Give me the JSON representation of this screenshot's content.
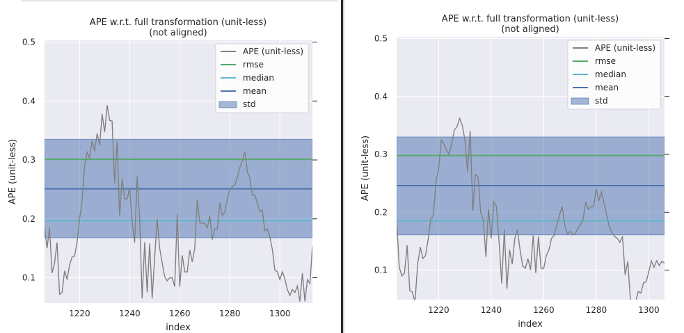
{
  "chart_data": [
    {
      "type": "line",
      "title": "APE w.r.t. full transformation (unit-less)",
      "subtitle": "(not aligned)",
      "xlabel": "index",
      "ylabel": "APE (unit-less)",
      "xlim": [
        1206,
        1313
      ],
      "ylim": [
        0.057,
        0.503
      ],
      "xticks": [
        1220,
        1240,
        1260,
        1280,
        1300
      ],
      "yticks": [
        0.1,
        0.2,
        0.3,
        0.4,
        0.5
      ],
      "xtick_labels": [
        "1220",
        "1240",
        "1260",
        "1280",
        "1300"
      ],
      "ytick_labels": [
        "0.1",
        "0.2",
        "0.3",
        "0.4",
        "0.5"
      ],
      "grid": true,
      "legend": {
        "placement": "top-right",
        "entries": [
          {
            "label": "APE (unit-less)",
            "kind": "line",
            "color": "#808080"
          },
          {
            "label": "rmse",
            "kind": "line",
            "color": "#55a868"
          },
          {
            "label": "median",
            "kind": "line",
            "color": "#64b5cd"
          },
          {
            "label": "mean",
            "kind": "line",
            "color": "#4c72b0"
          },
          {
            "label": "std",
            "kind": "band",
            "color": "#4c72b0"
          }
        ]
      },
      "stats": {
        "rmse": 0.301,
        "median": 0.197,
        "mean": 0.251,
        "std_low": 0.168,
        "std_high": 0.335
      },
      "series": [
        {
          "name": "APE (unit-less)",
          "color": "#808080",
          "x": [
            1206,
            1207,
            1208,
            1209,
            1210,
            1211,
            1212,
            1213,
            1214,
            1215,
            1216,
            1217,
            1218,
            1219,
            1220,
            1221,
            1222,
            1223,
            1224,
            1225,
            1226,
            1227,
            1228,
            1229,
            1230,
            1231,
            1232,
            1233,
            1234,
            1235,
            1236,
            1237,
            1238,
            1239,
            1240,
            1241,
            1242,
            1243,
            1244,
            1245,
            1246,
            1247,
            1248,
            1249,
            1250,
            1251,
            1252,
            1253,
            1254,
            1255,
            1256,
            1257,
            1258,
            1259,
            1260,
            1261,
            1262,
            1263,
            1264,
            1265,
            1266,
            1267,
            1268,
            1269,
            1270,
            1271,
            1272,
            1273,
            1274,
            1275,
            1276,
            1277,
            1278,
            1279,
            1280,
            1281,
            1282,
            1283,
            1284,
            1285,
            1286,
            1287,
            1288,
            1289,
            1290,
            1291,
            1292,
            1293,
            1294,
            1295,
            1296,
            1297,
            1298,
            1299,
            1300,
            1301,
            1302,
            1303,
            1304,
            1305,
            1306,
            1307,
            1308,
            1309,
            1310,
            1311,
            1312,
            1313
          ],
          "y": [
            0.186,
            0.15,
            0.185,
            0.108,
            0.125,
            0.16,
            0.072,
            0.075,
            0.112,
            0.097,
            0.122,
            0.135,
            0.137,
            0.16,
            0.2,
            0.23,
            0.29,
            0.313,
            0.303,
            0.332,
            0.315,
            0.345,
            0.325,
            0.378,
            0.347,
            0.393,
            0.367,
            0.366,
            0.26,
            0.332,
            0.205,
            0.268,
            0.234,
            0.234,
            0.251,
            0.195,
            0.16,
            0.272,
            0.2,
            0.065,
            0.16,
            0.075,
            0.158,
            0.065,
            0.135,
            0.2,
            0.15,
            0.125,
            0.102,
            0.095,
            0.1,
            0.1,
            0.085,
            0.208,
            0.085,
            0.138,
            0.11,
            0.11,
            0.147,
            0.127,
            0.15,
            0.233,
            0.193,
            0.193,
            0.192,
            0.185,
            0.205,
            0.165,
            0.183,
            0.183,
            0.227,
            0.205,
            0.212,
            0.234,
            0.249,
            0.255,
            0.258,
            0.27,
            0.287,
            0.298,
            0.314,
            0.28,
            0.27,
            0.24,
            0.241,
            0.227,
            0.212,
            0.215,
            0.18,
            0.183,
            0.17,
            0.148,
            0.113,
            0.11,
            0.097,
            0.11,
            0.098,
            0.08,
            0.07,
            0.08,
            0.075,
            0.086,
            0.06,
            0.108,
            0.06,
            0.097,
            0.09,
            0.153
          ]
        }
      ]
    },
    {
      "type": "line",
      "title": "APE w.r.t. full transformation (unit-less)",
      "subtitle": "(not aligned)",
      "xlabel": "index",
      "ylabel": "APE (unit-less)",
      "xlim": [
        1204,
        1306
      ],
      "ylim": [
        0.049,
        0.503
      ],
      "xticks": [
        1220,
        1240,
        1260,
        1280,
        1300
      ],
      "yticks": [
        0.1,
        0.2,
        0.3,
        0.4,
        0.5
      ],
      "xtick_labels": [
        "1220",
        "1240",
        "1260",
        "1280",
        "1300"
      ],
      "ytick_labels": [
        "0.1",
        "0.2",
        "0.3",
        "0.4",
        "0.5"
      ],
      "grid": true,
      "legend": {
        "placement": "top-right",
        "entries": [
          {
            "label": "APE (unit-less)",
            "kind": "line",
            "color": "#808080"
          },
          {
            "label": "rmse",
            "kind": "line",
            "color": "#55a868"
          },
          {
            "label": "median",
            "kind": "line",
            "color": "#64b5cd"
          },
          {
            "label": "mean",
            "kind": "line",
            "color": "#4c72b0"
          },
          {
            "label": "std",
            "kind": "band",
            "color": "#4c72b0"
          }
        ]
      },
      "stats": {
        "rmse": 0.298,
        "median": 0.185,
        "mean": 0.246,
        "std_low": 0.161,
        "std_high": 0.33
      },
      "series": [
        {
          "name": "APE (unit-less)",
          "color": "#808080",
          "x": [
            1204,
            1205,
            1206,
            1207,
            1208,
            1209,
            1210,
            1211,
            1212,
            1213,
            1214,
            1215,
            1216,
            1217,
            1218,
            1219,
            1220,
            1221,
            1222,
            1223,
            1224,
            1225,
            1226,
            1227,
            1228,
            1229,
            1230,
            1231,
            1232,
            1233,
            1234,
            1235,
            1236,
            1237,
            1238,
            1239,
            1240,
            1241,
            1242,
            1243,
            1244,
            1245,
            1246,
            1247,
            1248,
            1249,
            1250,
            1251,
            1252,
            1253,
            1254,
            1255,
            1256,
            1257,
            1258,
            1259,
            1260,
            1261,
            1262,
            1263,
            1264,
            1265,
            1266,
            1267,
            1268,
            1269,
            1270,
            1271,
            1272,
            1273,
            1274,
            1275,
            1276,
            1277,
            1278,
            1279,
            1280,
            1281,
            1282,
            1283,
            1284,
            1285,
            1286,
            1287,
            1288,
            1289,
            1290,
            1291,
            1292,
            1293,
            1294,
            1295,
            1296,
            1297,
            1298,
            1299,
            1300,
            1301,
            1302,
            1303,
            1304,
            1305,
            1306
          ],
          "y": [
            0.188,
            0.105,
            0.09,
            0.095,
            0.143,
            0.065,
            0.062,
            0.045,
            0.11,
            0.14,
            0.12,
            0.125,
            0.153,
            0.188,
            0.195,
            0.253,
            0.275,
            0.325,
            0.318,
            0.307,
            0.3,
            0.32,
            0.342,
            0.348,
            0.362,
            0.35,
            0.325,
            0.27,
            0.34,
            0.202,
            0.265,
            0.262,
            0.2,
            0.187,
            0.123,
            0.205,
            0.155,
            0.218,
            0.21,
            0.15,
            0.077,
            0.17,
            0.068,
            0.135,
            0.11,
            0.155,
            0.17,
            0.135,
            0.107,
            0.103,
            0.12,
            0.1,
            0.16,
            0.095,
            0.158,
            0.103,
            0.103,
            0.125,
            0.135,
            0.155,
            0.16,
            0.177,
            0.195,
            0.21,
            0.178,
            0.162,
            0.167,
            0.162,
            0.163,
            0.172,
            0.178,
            0.188,
            0.218,
            0.205,
            0.21,
            0.21,
            0.24,
            0.22,
            0.235,
            0.215,
            0.195,
            0.175,
            0.165,
            0.158,
            0.155,
            0.148,
            0.158,
            0.092,
            0.115,
            0.05,
            0.043,
            0.045,
            0.063,
            0.06,
            0.078,
            0.08,
            0.097,
            0.116,
            0.105,
            0.116,
            0.108,
            0.115,
            0.112
          ]
        }
      ]
    }
  ]
}
